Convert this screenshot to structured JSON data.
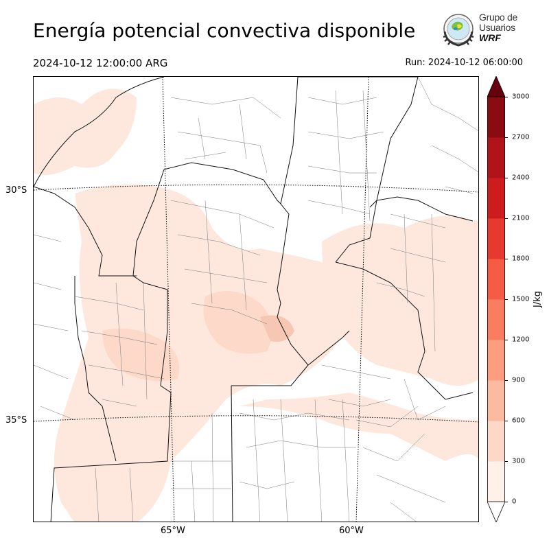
{
  "header": {
    "title": "Energía potencial convectiva disponible",
    "valid_time": "2024-10-12 12:00:00 ARG",
    "run_time": "Run: 2024-10-12 06:00:00"
  },
  "logo": {
    "line1": "Grupo de",
    "line2": "Usuarios",
    "line3": "WRF"
  },
  "map": {
    "lat_labels": [
      "30°S",
      "35°S"
    ],
    "lon_labels": [
      "65°W",
      "60°W"
    ],
    "variable": "CAPE",
    "shading_colors": {
      "light": "#fee8de",
      "medium": "#fcd9c8",
      "strong": "#f6c7b2"
    }
  },
  "colorbar": {
    "unit": "J/kg",
    "levels": [
      0,
      300,
      600,
      900,
      1200,
      1500,
      1800,
      2100,
      2400,
      2700,
      3000
    ],
    "tick_labels": [
      "0",
      "300",
      "600",
      "900",
      "1200",
      "1500",
      "1800",
      "2100",
      "2400",
      "2700",
      "3000"
    ],
    "colors": [
      "#fff0e9",
      "#fdd8c8",
      "#fcbba1",
      "#fc9d80",
      "#fb7d5f",
      "#f45d44",
      "#e73a2f",
      "#cd1c1d",
      "#b01318",
      "#8a0b12"
    ],
    "extend": "both",
    "under_color": "#ffffff",
    "over_color": "#67000d"
  }
}
